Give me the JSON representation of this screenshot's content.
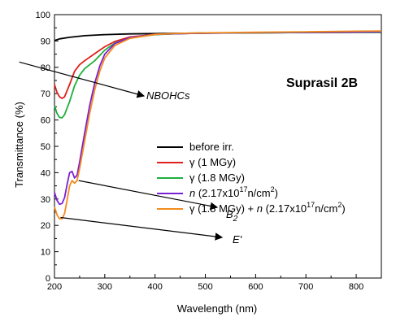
{
  "chart_data": {
    "type": "line",
    "title": "Suprasil 2B",
    "xlabel": "Wavelength (nm)",
    "ylabel": "Transmittance (%)",
    "xlim": [
      200,
      850
    ],
    "ylim": [
      0,
      100
    ],
    "x_ticks": [
      200,
      300,
      400,
      500,
      600,
      700,
      800
    ],
    "y_ticks": [
      0,
      10,
      20,
      30,
      40,
      50,
      60,
      70,
      80,
      90,
      100
    ],
    "grid": false,
    "legend_position": "center-right",
    "series": [
      {
        "name": "before irr.",
        "color": "#000000",
        "points": [
          [
            200,
            90.2
          ],
          [
            210,
            90.8
          ],
          [
            230,
            91.4
          ],
          [
            260,
            92.0
          ],
          [
            300,
            92.4
          ],
          [
            350,
            92.7
          ],
          [
            400,
            92.8
          ],
          [
            500,
            93.0
          ],
          [
            600,
            93.1
          ],
          [
            700,
            93.2
          ],
          [
            800,
            93.3
          ],
          [
            850,
            93.3
          ]
        ]
      },
      {
        "name": "γ (1 MGy)",
        "color": "#e0201b",
        "points": [
          [
            200,
            73.5
          ],
          [
            205,
            70.5
          ],
          [
            210,
            68.8
          ],
          [
            215,
            68.2
          ],
          [
            220,
            68.8
          ],
          [
            230,
            73.5
          ],
          [
            240,
            78.5
          ],
          [
            250,
            81.0
          ],
          [
            260,
            82.5
          ],
          [
            280,
            85.2
          ],
          [
            300,
            87.8
          ],
          [
            320,
            89.8
          ],
          [
            350,
            91.5
          ],
          [
            400,
            92.5
          ],
          [
            450,
            92.8
          ],
          [
            500,
            93.0
          ],
          [
            600,
            93.1
          ],
          [
            700,
            93.2
          ],
          [
            800,
            93.3
          ],
          [
            850,
            93.3
          ]
        ]
      },
      {
        "name": "γ (1.8 MGy)",
        "color": "#1fae3c",
        "points": [
          [
            200,
            65.5
          ],
          [
            205,
            62.5
          ],
          [
            210,
            61.0
          ],
          [
            215,
            60.8
          ],
          [
            220,
            62.0
          ],
          [
            230,
            67.0
          ],
          [
            240,
            73.0
          ],
          [
            250,
            77.0
          ],
          [
            260,
            79.5
          ],
          [
            280,
            82.5
          ],
          [
            300,
            86.5
          ],
          [
            320,
            89.2
          ],
          [
            350,
            91.2
          ],
          [
            400,
            92.4
          ],
          [
            450,
            92.8
          ],
          [
            500,
            93.0
          ],
          [
            600,
            93.1
          ],
          [
            700,
            93.2
          ],
          [
            800,
            93.3
          ],
          [
            850,
            93.3
          ]
        ]
      },
      {
        "name": "n (2.17x10¹⁷n/cm²)",
        "color": "#7b1fd6",
        "points": [
          [
            200,
            32.5
          ],
          [
            205,
            29.5
          ],
          [
            210,
            28.0
          ],
          [
            215,
            28.3
          ],
          [
            220,
            30.5
          ],
          [
            225,
            35.5
          ],
          [
            230,
            40.0
          ],
          [
            235,
            40.5
          ],
          [
            240,
            38.0
          ],
          [
            245,
            39.0
          ],
          [
            250,
            44.0
          ],
          [
            260,
            55.0
          ],
          [
            270,
            65.5
          ],
          [
            280,
            74.0
          ],
          [
            290,
            80.5
          ],
          [
            300,
            85.0
          ],
          [
            320,
            89.0
          ],
          [
            350,
            91.3
          ],
          [
            400,
            92.5
          ],
          [
            450,
            92.8
          ],
          [
            500,
            93.0
          ],
          [
            600,
            93.2
          ],
          [
            700,
            93.3
          ],
          [
            800,
            93.4
          ],
          [
            850,
            93.5
          ]
        ]
      },
      {
        "name": "γ (1.8 MGy) + n (2.17x10¹⁷n/cm²)",
        "color": "#f28c1c",
        "points": [
          [
            200,
            27.0
          ],
          [
            205,
            24.0
          ],
          [
            210,
            22.5
          ],
          [
            215,
            22.5
          ],
          [
            220,
            24.5
          ],
          [
            225,
            29.5
          ],
          [
            230,
            35.0
          ],
          [
            235,
            37.0
          ],
          [
            240,
            36.0
          ],
          [
            245,
            37.0
          ],
          [
            250,
            41.5
          ],
          [
            260,
            52.0
          ],
          [
            270,
            62.5
          ],
          [
            280,
            71.5
          ],
          [
            290,
            78.5
          ],
          [
            300,
            83.5
          ],
          [
            320,
            88.3
          ],
          [
            350,
            91.0
          ],
          [
            400,
            92.5
          ],
          [
            450,
            92.9
          ],
          [
            500,
            93.1
          ],
          [
            600,
            93.3
          ],
          [
            700,
            93.5
          ],
          [
            800,
            93.7
          ],
          [
            850,
            93.8
          ]
        ]
      }
    ],
    "legend": [
      {
        "prefix": "",
        "main": "before irr.",
        "sup": "",
        "rest": "",
        "sup2": "",
        "rest2": ""
      },
      {
        "prefix": "γ",
        "main": " (1 MGy)",
        "sup": "",
        "rest": "",
        "sup2": "",
        "rest2": ""
      },
      {
        "prefix": "γ",
        "main": " (1.8 MGy)",
        "sup": "",
        "rest": "",
        "sup2": "",
        "rest2": ""
      },
      {
        "prefix": "n",
        "main": " (2.17x10",
        "sup": "17",
        "rest": "n/cm",
        "sup2": "2",
        "rest2": ")"
      },
      {
        "prefix": "γ",
        "main": " (1.8 MGy) + ",
        "prefix2": "n",
        "main2": " (2.17x10",
        "sup": "17",
        "rest": "n/cm",
        "sup2": "2",
        "rest2": ")"
      }
    ],
    "annotations": [
      {
        "label": "NBOHCs",
        "sub": "",
        "prime": ""
      },
      {
        "label": "B",
        "sub": "2",
        "prime": ""
      },
      {
        "label": "E",
        "sub": "",
        "prime": "'"
      }
    ]
  }
}
